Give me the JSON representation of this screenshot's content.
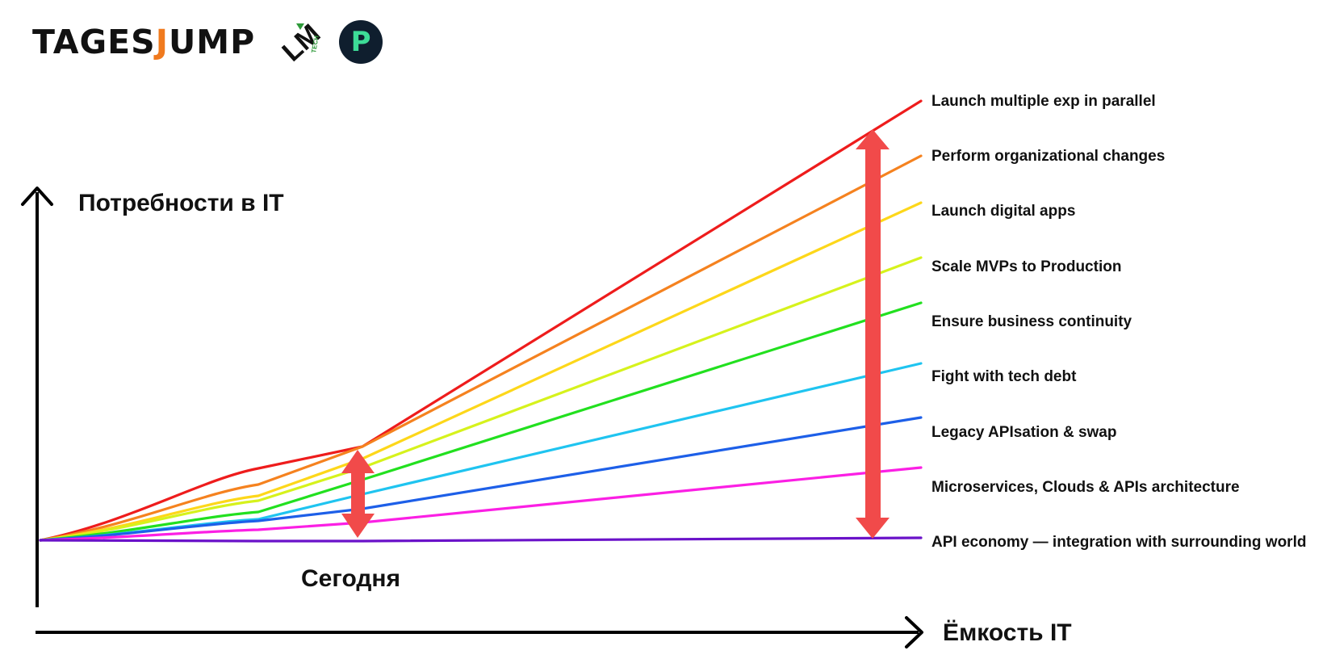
{
  "header": {
    "brand_text": "TAGES",
    "brand_accent": "J",
    "brand_tail": "UMP",
    "logo_lm_text": "LM",
    "logo_lm_tech": "TECH",
    "logo_p_text": "P"
  },
  "axes": {
    "y_label": "Потребности в IT",
    "x_label": "Ёмкость IT",
    "today_label": "Сегодня"
  },
  "colors": {
    "brand_accent": "#f07a1e",
    "p_logo_bg": "#0f1e2e",
    "p_logo_fg": "#3ddc97",
    "arrow": "#f14a4a",
    "lm_green": "#2f9a3a"
  },
  "chart_data": {
    "type": "line",
    "series": [
      {
        "name": "Launch multiple exp in parallel",
        "color": "#ee1c1c"
      },
      {
        "name": "Perform organizational changes",
        "color": "#f5821f"
      },
      {
        "name": "Launch digital apps",
        "color": "#fdd71a"
      },
      {
        "name": "Scale MVPs to Production",
        "color": "#d6f21c"
      },
      {
        "name": "Ensure business continuity",
        "color": "#22e01f"
      },
      {
        "name": "Fight with tech debt",
        "color": "#1fc4f0"
      },
      {
        "name": "Legacy APIsation & swap",
        "color": "#1d5fe8"
      },
      {
        "name": "Microservices, Clouds & APIs architecture",
        "color": "#fb1fe4"
      },
      {
        "name": "API economy — integration with surrounding world",
        "color": "#6a12c9"
      }
    ]
  }
}
